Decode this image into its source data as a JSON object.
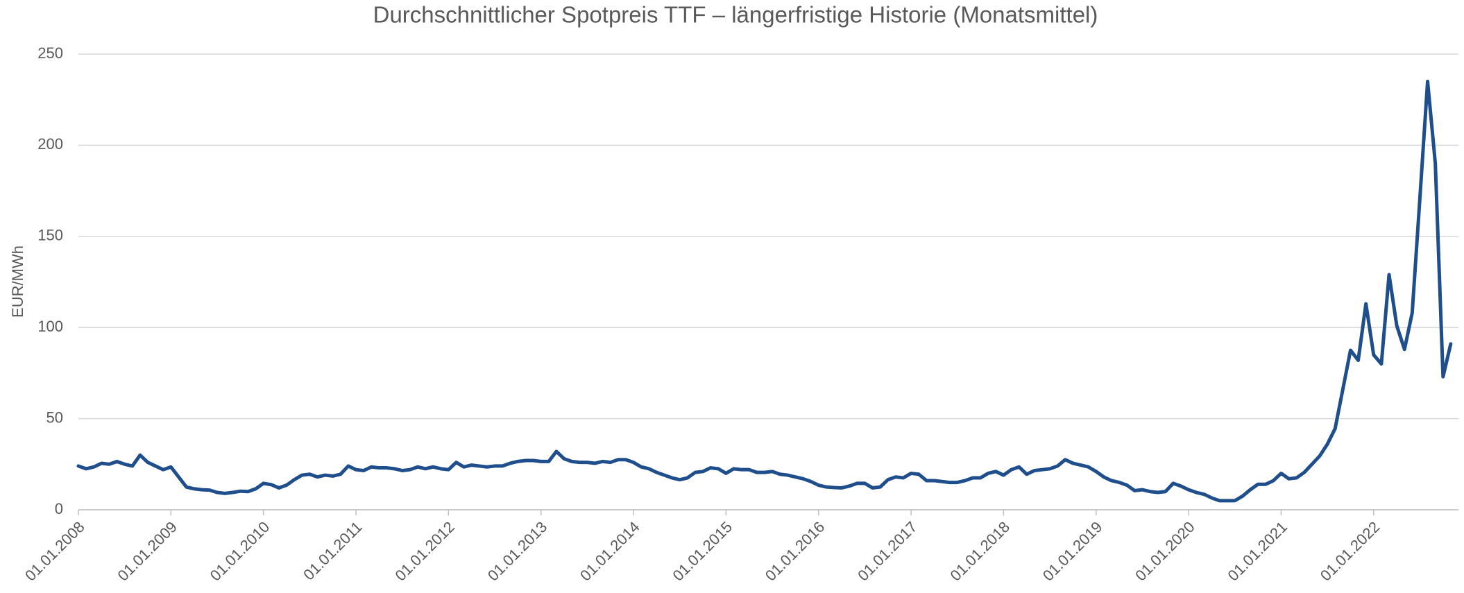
{
  "chart_data": {
    "type": "line",
    "title": "Durchschnittlicher Spotpreis TTF – längerfristige Historie (Monatsmittel)",
    "y_label": "EUR/MWh",
    "x": [
      "01.01.2008",
      "01.02.2008",
      "01.03.2008",
      "01.04.2008",
      "01.05.2008",
      "01.06.2008",
      "01.07.2008",
      "01.08.2008",
      "01.09.2008",
      "01.10.2008",
      "01.11.2008",
      "01.12.2008",
      "01.01.2009",
      "01.02.2009",
      "01.03.2009",
      "01.04.2009",
      "01.05.2009",
      "01.06.2009",
      "01.07.2009",
      "01.08.2009",
      "01.09.2009",
      "01.10.2009",
      "01.11.2009",
      "01.12.2009",
      "01.01.2010",
      "01.02.2010",
      "01.03.2010",
      "01.04.2010",
      "01.05.2010",
      "01.06.2010",
      "01.07.2010",
      "01.08.2010",
      "01.09.2010",
      "01.10.2010",
      "01.11.2010",
      "01.12.2010",
      "01.01.2011",
      "01.02.2011",
      "01.03.2011",
      "01.04.2011",
      "01.05.2011",
      "01.06.2011",
      "01.07.2011",
      "01.08.2011",
      "01.09.2011",
      "01.10.2011",
      "01.11.2011",
      "01.12.2011",
      "01.01.2012",
      "01.02.2012",
      "01.03.2012",
      "01.04.2012",
      "01.05.2012",
      "01.06.2012",
      "01.07.2012",
      "01.08.2012",
      "01.09.2012",
      "01.10.2012",
      "01.11.2012",
      "01.12.2012",
      "01.01.2013",
      "01.02.2013",
      "01.03.2013",
      "01.04.2013",
      "01.05.2013",
      "01.06.2013",
      "01.07.2013",
      "01.08.2013",
      "01.09.2013",
      "01.10.2013",
      "01.11.2013",
      "01.12.2013",
      "01.01.2014",
      "01.02.2014",
      "01.03.2014",
      "01.04.2014",
      "01.05.2014",
      "01.06.2014",
      "01.07.2014",
      "01.08.2014",
      "01.09.2014",
      "01.10.2014",
      "01.11.2014",
      "01.12.2014",
      "01.01.2015",
      "01.02.2015",
      "01.03.2015",
      "01.04.2015",
      "01.05.2015",
      "01.06.2015",
      "01.07.2015",
      "01.08.2015",
      "01.09.2015",
      "01.10.2015",
      "01.11.2015",
      "01.12.2015",
      "01.01.2016",
      "01.02.2016",
      "01.03.2016",
      "01.04.2016",
      "01.05.2016",
      "01.06.2016",
      "01.07.2016",
      "01.08.2016",
      "01.09.2016",
      "01.10.2016",
      "01.11.2016",
      "01.12.2016",
      "01.01.2017",
      "01.02.2017",
      "01.03.2017",
      "01.04.2017",
      "01.05.2017",
      "01.06.2017",
      "01.07.2017",
      "01.08.2017",
      "01.09.2017",
      "01.10.2017",
      "01.11.2017",
      "01.12.2017",
      "01.01.2018",
      "01.02.2018",
      "01.03.2018",
      "01.04.2018",
      "01.05.2018",
      "01.06.2018",
      "01.07.2018",
      "01.08.2018",
      "01.09.2018",
      "01.10.2018",
      "01.11.2018",
      "01.12.2018",
      "01.01.2019",
      "01.02.2019",
      "01.03.2019",
      "01.04.2019",
      "01.05.2019",
      "01.06.2019",
      "01.07.2019",
      "01.08.2019",
      "01.09.2019",
      "01.10.2019",
      "01.11.2019",
      "01.12.2019",
      "01.01.2020",
      "01.02.2020",
      "01.03.2020",
      "01.04.2020",
      "01.05.2020",
      "01.06.2020",
      "01.07.2020",
      "01.08.2020",
      "01.09.2020",
      "01.10.2020",
      "01.11.2020",
      "01.12.2020",
      "01.01.2021",
      "01.02.2021",
      "01.03.2021",
      "01.04.2021",
      "01.05.2021",
      "01.06.2021",
      "01.07.2021",
      "01.08.2021",
      "01.09.2021",
      "01.10.2021",
      "01.11.2021",
      "01.12.2021",
      "01.01.2022",
      "01.02.2022",
      "01.03.2022",
      "01.04.2022",
      "01.05.2022",
      "01.06.2022",
      "01.07.2022",
      "01.08.2022",
      "01.09.2022",
      "01.10.2022",
      "01.11.2022"
    ],
    "series": [
      {
        "name": "TTF",
        "color": "#1f4e8c",
        "values": [
          24,
          22.5,
          23.5,
          25.5,
          25,
          26.5,
          25,
          24,
          30,
          26,
          24,
          22,
          23.5,
          18,
          12.5,
          11.5,
          11,
          10.8,
          9.5,
          9,
          9.5,
          10.2,
          10,
          11.5,
          14.5,
          13.8,
          12,
          13.5,
          16.5,
          19,
          19.5,
          18,
          19,
          18.5,
          19.5,
          24,
          22,
          21.5,
          23.5,
          23,
          23,
          22.5,
          21.5,
          22,
          23.5,
          22.5,
          23.5,
          22.5,
          22,
          26,
          23.5,
          24.5,
          24,
          23.5,
          24,
          24,
          25.5,
          26.5,
          27,
          27,
          26.5,
          26.5,
          32,
          28,
          26.5,
          26,
          26,
          25.5,
          26.5,
          26,
          27.5,
          27.5,
          26,
          23.5,
          22.5,
          20.5,
          19,
          17.5,
          16.5,
          17.5,
          20.5,
          21,
          23,
          22.5,
          20,
          22.5,
          22,
          22,
          20.5,
          20.5,
          21,
          19.5,
          19,
          18,
          17,
          15.5,
          13.5,
          12.5,
          12.2,
          12,
          13,
          14.5,
          14.5,
          12,
          12.5,
          16.5,
          18,
          17.5,
          20,
          19.5,
          16,
          16,
          15.5,
          15,
          15,
          16,
          17.5,
          17.5,
          20,
          21,
          19,
          22,
          23.5,
          19.5,
          21.5,
          22,
          22.5,
          24,
          27.5,
          25.5,
          24.5,
          23.5,
          21,
          18,
          16,
          15,
          13.5,
          10.5,
          11,
          10,
          9.5,
          10,
          14.5,
          13,
          11,
          9.5,
          8.5,
          6.5,
          5,
          5,
          5,
          7.5,
          11,
          14,
          14,
          16,
          20,
          17,
          17.5,
          20.5,
          25,
          29.5,
          36,
          44.5,
          66,
          87.5,
          82,
          113,
          85,
          80,
          129,
          101,
          88,
          108,
          171,
          235,
          190,
          73,
          91
        ]
      }
    ],
    "ylim": [
      0,
      250
    ],
    "yticks": [
      0,
      50,
      100,
      150,
      200,
      250
    ],
    "xticks": [
      "01.01.2008",
      "01.01.2009",
      "01.01.2010",
      "01.01.2011",
      "01.01.2012",
      "01.01.2013",
      "01.01.2014",
      "01.01.2015",
      "01.01.2016",
      "01.01.2017",
      "01.01.2018",
      "01.01.2019",
      "01.01.2020",
      "01.01.2021",
      "01.01.2022"
    ],
    "grid": true
  }
}
